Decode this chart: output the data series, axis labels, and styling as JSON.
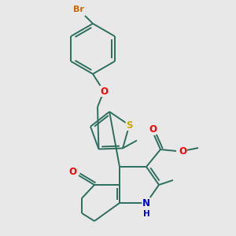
{
  "background_color": "#e8e8e8",
  "bond_color": "#2d6e5e",
  "atom_colors": {
    "Br": "#cc6600",
    "O": "#ff0000",
    "S": "#ccaa00",
    "N": "#0000cc",
    "C": "#2d6e5e"
  },
  "figsize": [
    3.0,
    3.0
  ],
  "dpi": 100
}
